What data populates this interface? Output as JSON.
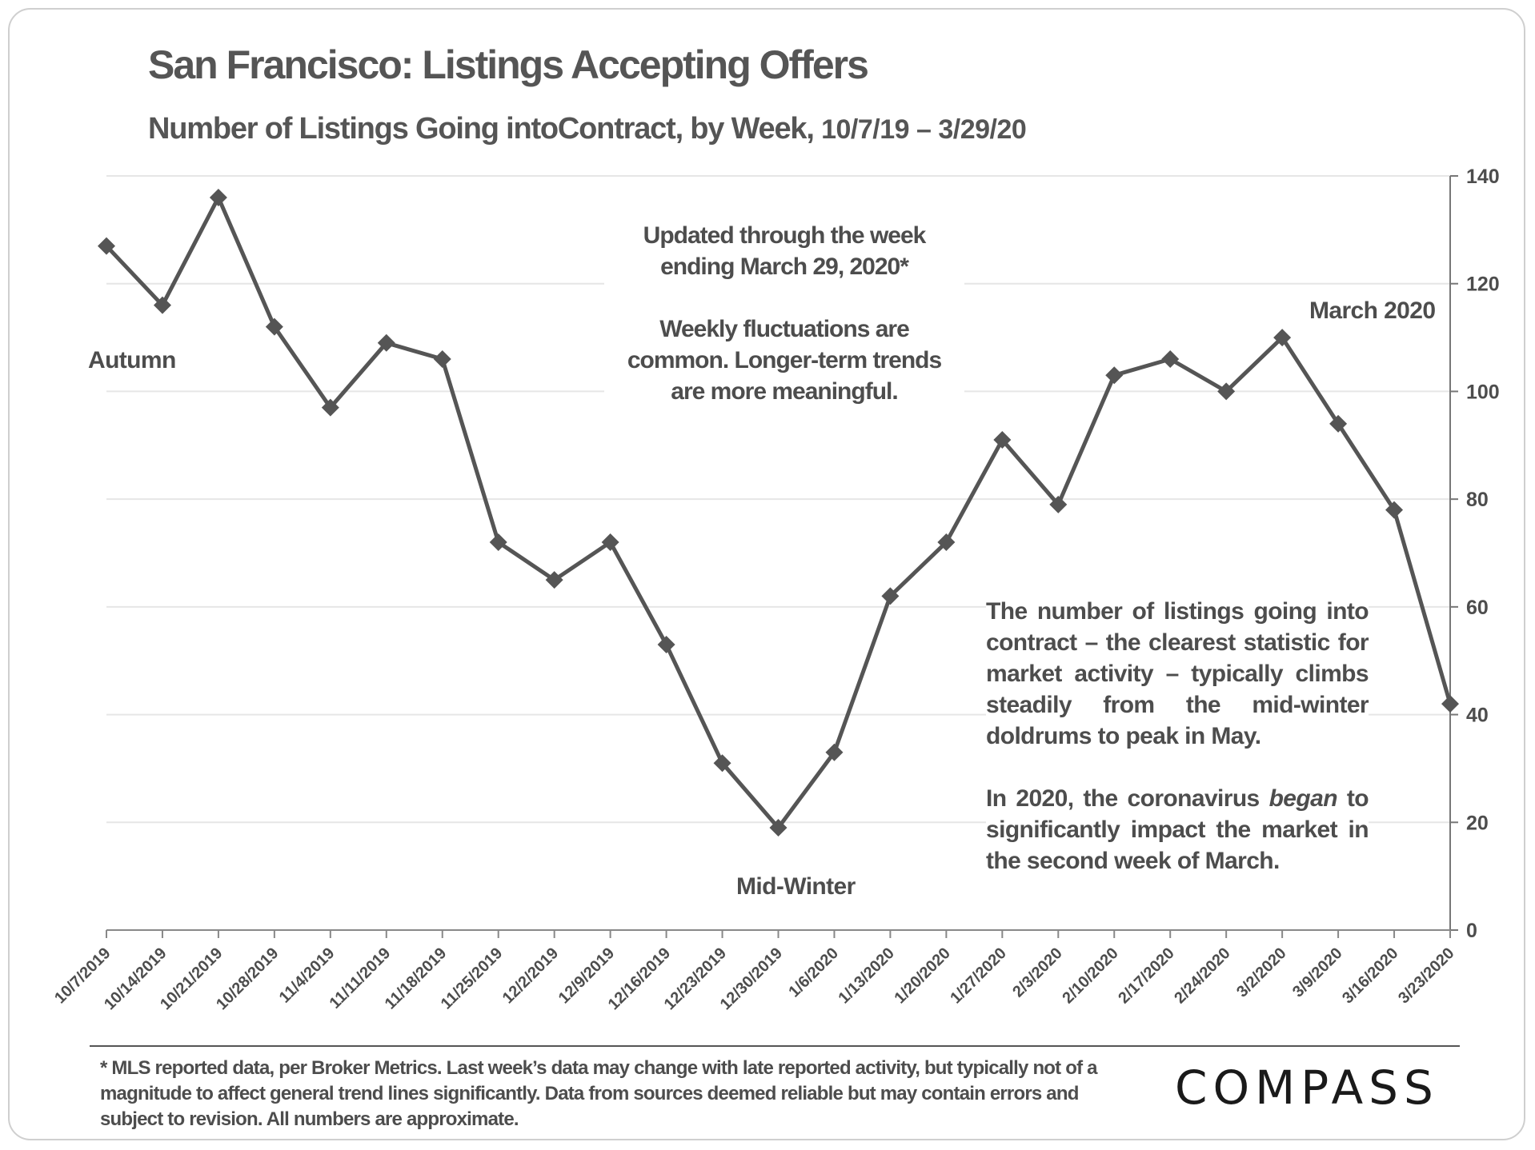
{
  "title": "San Francisco: Listings Accepting Offers",
  "subtitle_main": "Number of Listings Going intoContract, by Week,",
  "subtitle_dates": "10/7/19 – 3/29/20",
  "notes": {
    "updated_line1": "Updated through the week",
    "updated_line2": "ending March 29, 2020*",
    "fluctuation_line1": "Weekly fluctuations are",
    "fluctuation_line2": "common. Longer-term trends",
    "fluctuation_line3": "are more meaningful.",
    "context_p1": "The number of listings going into contract – the clearest statistic for market activity – typically climbs steadily from the mid-winter doldrums to peak in May.",
    "context_p2_before": "In 2020, the coronavirus ",
    "context_p2_emph": "began",
    "context_p2_after": " to significantly impact the market in the second week of March."
  },
  "annotations": {
    "autumn": "Autumn",
    "midwinter": "Mid-Winter",
    "march": "March 2020"
  },
  "footnote": "* MLS reported data, per Broker Metrics. Last week’s data may change with late reported activity, but typically not of a magnitude to affect general trend lines significantly. Data from sources deemed reliable but may contain errors and subject to revision. All numbers are approximate.",
  "logo": "COMPASS",
  "colors": {
    "line": "#555555",
    "grid": "#e6e6e6",
    "text": "#4d4d4d"
  },
  "chart_data": {
    "type": "line",
    "title": "San Francisco: Listings Accepting Offers",
    "x": [
      "10/7/2019",
      "10/14/2019",
      "10/21/2019",
      "10/28/2019",
      "11/4/2019",
      "11/11/2019",
      "11/18/2019",
      "11/25/2019",
      "12/2/2019",
      "12/9/2019",
      "12/16/2019",
      "12/23/2019",
      "12/30/2019",
      "1/6/2020",
      "1/13/2020",
      "1/20/2020",
      "1/27/2020",
      "2/3/2020",
      "2/10/2020",
      "2/17/2020",
      "2/24/2020",
      "3/2/2020",
      "3/9/2020",
      "3/16/2020",
      "3/23/2020"
    ],
    "values": [
      127,
      116,
      136,
      112,
      97,
      109,
      106,
      72,
      65,
      72,
      53,
      31,
      19,
      33,
      62,
      72,
      91,
      79,
      103,
      106,
      100,
      110,
      94,
      78,
      42
    ],
    "y_ticks": [
      0,
      20,
      40,
      60,
      80,
      100,
      120,
      140
    ],
    "ylim": [
      0,
      140
    ],
    "y_axis_side": "right",
    "grid": "horizontal",
    "marker": "diamond",
    "xlabel": "",
    "ylabel": ""
  }
}
